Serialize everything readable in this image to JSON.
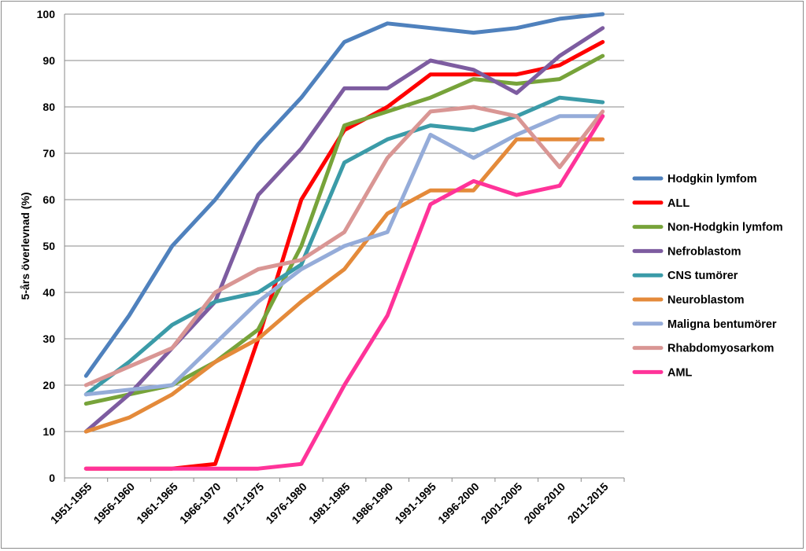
{
  "chart_data": {
    "type": "line",
    "title": "",
    "xlabel": "",
    "ylabel": "5-års överlevnad (%)",
    "ylim": [
      0,
      100
    ],
    "yticks": [
      0,
      10,
      20,
      30,
      40,
      50,
      60,
      70,
      80,
      90,
      100
    ],
    "grid": "horizontal",
    "legend_position": "right",
    "categories": [
      "1951-1955",
      "1956-1960",
      "1961-1965",
      "1966-1970",
      "1971-1975",
      "1976-1980",
      "1981-1985",
      "1986-1990",
      "1991-1995",
      "1996-2000",
      "2001-2005",
      "2006-2010",
      "2011-2015"
    ],
    "series": [
      {
        "name": "Hodgkin lymfom",
        "color": "#4f81bd",
        "values": [
          22,
          35,
          50,
          60,
          72,
          82,
          94,
          98,
          97,
          96,
          97,
          99,
          100
        ]
      },
      {
        "name": "ALL",
        "color": "#ff0000",
        "values": [
          2,
          2,
          2,
          3,
          30,
          60,
          75,
          80,
          87,
          87,
          87,
          89,
          94
        ]
      },
      {
        "name": "Non-Hodgkin lymfom",
        "color": "#77a33a",
        "values": [
          16,
          18,
          20,
          25,
          32,
          50,
          76,
          79,
          82,
          86,
          85,
          86,
          91
        ]
      },
      {
        "name": "Nefroblastom",
        "color": "#7d5ca0",
        "values": [
          10,
          18,
          28,
          38,
          61,
          71,
          84,
          84,
          90,
          88,
          83,
          91,
          97
        ]
      },
      {
        "name": "CNS tumörer",
        "color": "#3b9ba8",
        "values": [
          18,
          25,
          33,
          38,
          40,
          46,
          68,
          73,
          76,
          75,
          78,
          82,
          81
        ]
      },
      {
        "name": "Neuroblastom",
        "color": "#e48a3a",
        "values": [
          10,
          13,
          18,
          25,
          30,
          38,
          45,
          57,
          62,
          62,
          73,
          73,
          73
        ]
      },
      {
        "name": "Maligna bentumörer",
        "color": "#95acd9",
        "values": [
          18,
          19,
          20,
          29,
          38,
          45,
          50,
          53,
          74,
          69,
          74,
          78,
          78
        ]
      },
      {
        "name": "Rhabdomyosarkom",
        "color": "#d99694",
        "values": [
          20,
          24,
          28,
          40,
          45,
          47,
          53,
          69,
          79,
          80,
          78,
          67,
          79
        ]
      },
      {
        "name": "AML",
        "color": "#ff3399",
        "values": [
          2,
          2,
          2,
          2,
          2,
          3,
          20,
          35,
          59,
          64,
          61,
          63,
          78
        ]
      }
    ]
  }
}
